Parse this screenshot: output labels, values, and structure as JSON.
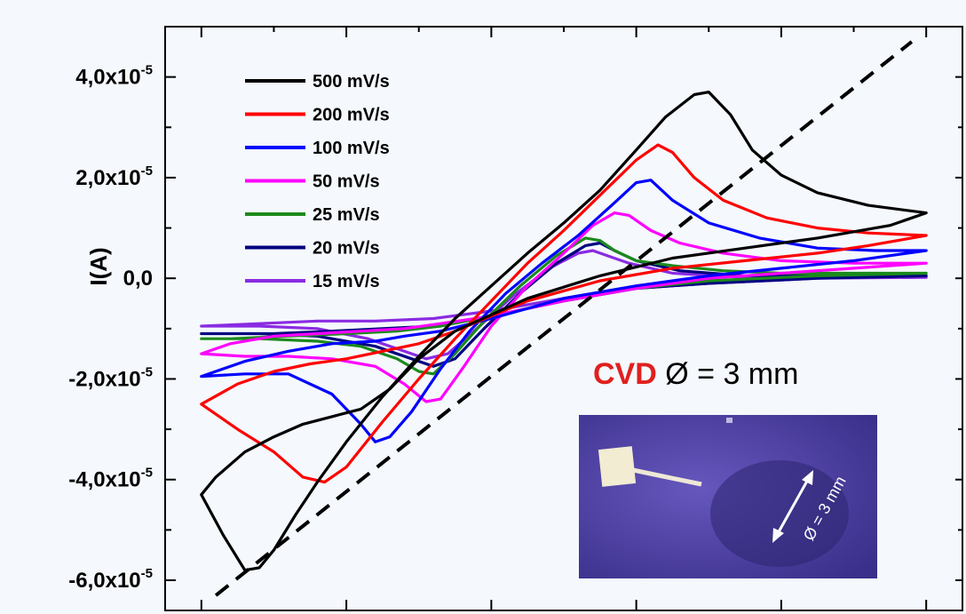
{
  "chart_data": {
    "type": "line",
    "ylabel": "I(A)",
    "xlabel": "",
    "xlim": [
      -0.35,
      0.75
    ],
    "ylim": [
      -6.6e-05,
      5e-05
    ],
    "x_ticks": [
      -0.3,
      -0.1,
      0.1,
      0.3,
      0.5,
      0.7
    ],
    "y_tick_values": [
      4e-05,
      2e-05,
      0.0,
      -2e-05,
      -4e-05,
      -6e-05
    ],
    "y_tick_labels": [
      {
        "mant": "4,0x10",
        "exp": "-5"
      },
      {
        "mant": "2,0x10",
        "exp": "-5"
      },
      {
        "mant": "0,0",
        "exp": ""
      },
      {
        "mant": "-2,0x10",
        "exp": "-5"
      },
      {
        "mant": "-4,0x10",
        "exp": "-5"
      },
      {
        "mant": "-6,0x10",
        "exp": "-5"
      }
    ],
    "grid": false,
    "legend_position": "top-left",
    "series": [
      {
        "name": "500 mV/s",
        "color": "#000000",
        "x": [
          -0.3,
          -0.27,
          -0.24,
          -0.22,
          -0.2,
          -0.17,
          -0.14,
          -0.1,
          -0.05,
          0.0,
          0.05,
          0.1,
          0.15,
          0.2,
          0.25,
          0.3,
          0.34,
          0.38,
          0.4,
          0.43,
          0.46,
          0.5,
          0.55,
          0.62,
          0.7,
          0.65,
          0.55,
          0.45,
          0.35,
          0.25,
          0.15,
          0.05,
          0.0,
          -0.04,
          -0.08,
          -0.12,
          -0.16,
          -0.2,
          -0.24,
          -0.28,
          -0.3
        ],
        "y": [
          -4.3e-05,
          -5.1e-05,
          -5.8e-05,
          -5.75e-05,
          -5.4e-05,
          -4.7e-05,
          -4.05e-05,
          -3.25e-05,
          -2.35e-05,
          -1.55e-05,
          -8e-06,
          -1.5e-06,
          5e-06,
          1.1e-05,
          1.75e-05,
          2.55e-05,
          3.2e-05,
          3.65e-05,
          3.7e-05,
          3.25e-05,
          2.55e-05,
          2.05e-05,
          1.7e-05,
          1.45e-05,
          1.3e-05,
          1.05e-05,
          8e-06,
          6e-06,
          4e-06,
          5e-07,
          -4e-06,
          -1.05e-05,
          -1.6e-05,
          -2.2e-05,
          -2.6e-05,
          -2.75e-05,
          -2.9e-05,
          -3.15e-05,
          -3.45e-05,
          -3.95e-05,
          -4.3e-05
        ]
      },
      {
        "name": "200 mV/s",
        "color": "#ff0000",
        "x": [
          -0.3,
          -0.25,
          -0.2,
          -0.16,
          -0.13,
          -0.1,
          -0.05,
          0.0,
          0.05,
          0.1,
          0.15,
          0.2,
          0.25,
          0.3,
          0.33,
          0.35,
          0.38,
          0.42,
          0.48,
          0.55,
          0.62,
          0.7,
          0.62,
          0.55,
          0.45,
          0.35,
          0.25,
          0.15,
          0.05,
          0.0,
          -0.05,
          -0.1,
          -0.15,
          -0.2,
          -0.25,
          -0.3
        ],
        "y": [
          -2.5e-05,
          -3e-05,
          -3.45e-05,
          -3.95e-05,
          -4.05e-05,
          -3.75e-05,
          -2.85e-05,
          -2e-05,
          -1.2e-05,
          -4.5e-06,
          3e-06,
          9.5e-06,
          1.65e-05,
          2.35e-05,
          2.65e-05,
          2.5e-05,
          2e-05,
          1.55e-05,
          1.2e-05,
          1e-05,
          9e-06,
          8.5e-06,
          6.5e-06,
          5e-06,
          3.5e-06,
          2e-06,
          -5e-07,
          -4.5e-06,
          -1.05e-05,
          -1.3e-05,
          -1.45e-05,
          -1.6e-05,
          -1.7e-05,
          -1.85e-05,
          -2.1e-05,
          -2.5e-05
        ]
      },
      {
        "name": "100 mV/s",
        "color": "#0000ff",
        "x": [
          -0.3,
          -0.24,
          -0.18,
          -0.12,
          -0.08,
          -0.06,
          -0.04,
          -0.01,
          0.03,
          0.07,
          0.12,
          0.17,
          0.22,
          0.27,
          0.3,
          0.32,
          0.35,
          0.4,
          0.47,
          0.55,
          0.63,
          0.7,
          0.6,
          0.5,
          0.4,
          0.3,
          0.2,
          0.1,
          0.03,
          -0.02,
          -0.06,
          -0.12,
          -0.18,
          -0.24,
          -0.3
        ],
        "y": [
          -1.95e-05,
          -1.9e-05,
          -1.9e-05,
          -2.3e-05,
          -2.9e-05,
          -3.25e-05,
          -3.15e-05,
          -2.65e-05,
          -1.8e-05,
          -1.05e-05,
          -3e-06,
          3e-06,
          8.5e-06,
          1.5e-05,
          1.9e-05,
          1.95e-05,
          1.55e-05,
          1.1e-05,
          8e-06,
          6e-06,
          5.5e-06,
          5.5e-06,
          3.5e-06,
          2e-06,
          5e-07,
          -1.5e-06,
          -4e-06,
          -8e-06,
          -1.05e-05,
          -1.15e-05,
          -1.25e-05,
          -1.3e-05,
          -1.45e-05,
          -1.65e-05,
          -1.95e-05
        ]
      },
      {
        "name": "50 mV/s",
        "color": "#ff00ff",
        "x": [
          -0.3,
          -0.24,
          -0.18,
          -0.12,
          -0.06,
          -0.02,
          0.01,
          0.03,
          0.06,
          0.1,
          0.15,
          0.2,
          0.24,
          0.27,
          0.29,
          0.32,
          0.36,
          0.42,
          0.5,
          0.6,
          0.7,
          0.6,
          0.5,
          0.4,
          0.3,
          0.2,
          0.1,
          0.03,
          -0.02,
          -0.08,
          -0.14,
          -0.2,
          -0.26,
          -0.3
        ],
        "y": [
          -1.5e-05,
          -1.55e-05,
          -1.55e-05,
          -1.6e-05,
          -1.75e-05,
          -2.1e-05,
          -2.45e-05,
          -2.4e-05,
          -1.8e-05,
          -9.5e-06,
          -1.5e-06,
          5e-06,
          1.05e-05,
          1.3e-05,
          1.25e-05,
          9.5e-06,
          7e-06,
          5e-06,
          3.5e-06,
          3e-06,
          3e-06,
          2e-06,
          1e-06,
          0.0,
          -2e-06,
          -4.5e-06,
          -7.5e-06,
          -9e-06,
          -1e-05,
          -1.05e-05,
          -1.1e-05,
          -1.15e-05,
          -1.3e-05,
          -1.5e-05
        ]
      },
      {
        "name": "25 mV/s",
        "color": "#1c8a1c",
        "x": [
          -0.3,
          -0.22,
          -0.14,
          -0.08,
          -0.03,
          0.0,
          0.02,
          0.05,
          0.09,
          0.14,
          0.19,
          0.23,
          0.25,
          0.27,
          0.3,
          0.35,
          0.42,
          0.5,
          0.6,
          0.7,
          0.55,
          0.4,
          0.3,
          0.2,
          0.1,
          0.03,
          -0.03,
          -0.1,
          -0.18,
          -0.26,
          -0.3
        ],
        "y": [
          -1.2e-05,
          -1.2e-05,
          -1.25e-05,
          -1.35e-05,
          -1.6e-05,
          -1.85e-05,
          -1.9e-05,
          -1.5e-05,
          -8.5e-06,
          -1.5e-06,
          4.5e-06,
          8e-06,
          7.5e-06,
          5.5e-06,
          3.5e-06,
          2.5e-06,
          1.5e-06,
          1e-06,
          1e-06,
          1e-06,
          5e-07,
          -5e-07,
          -2e-06,
          -4.5e-06,
          -7.5e-06,
          -9.5e-06,
          -1.05e-05,
          -1.1e-05,
          -1.15e-05,
          -1.2e-05,
          -1.2e-05
        ]
      },
      {
        "name": "20 mV/s",
        "color": "#000080",
        "x": [
          -0.3,
          -0.22,
          -0.14,
          -0.06,
          -0.01,
          0.02,
          0.05,
          0.09,
          0.14,
          0.19,
          0.23,
          0.25,
          0.27,
          0.3,
          0.36,
          0.45,
          0.55,
          0.7,
          0.55,
          0.4,
          0.3,
          0.2,
          0.1,
          0.02,
          -0.05,
          -0.12,
          -0.2,
          -0.3
        ],
        "y": [
          -1.1e-05,
          -1.1e-05,
          -1.15e-05,
          -1.35e-05,
          -1.6e-05,
          -1.75e-05,
          -1.6e-05,
          -1e-05,
          -3e-06,
          3e-06,
          6.5e-06,
          7e-06,
          5.5e-06,
          3.5e-06,
          1.5e-06,
          5e-07,
          5e-07,
          5e-07,
          0.0,
          -1e-06,
          -2e-06,
          -4.5e-06,
          -7.5e-06,
          -9.5e-06,
          -1e-05,
          -1.05e-05,
          -1.1e-05,
          -1.1e-05
        ]
      },
      {
        "name": "15 mV/s",
        "color": "#8a2be2",
        "x": [
          -0.3,
          -0.22,
          -0.14,
          -0.07,
          -0.02,
          0.01,
          0.04,
          0.08,
          0.13,
          0.18,
          0.22,
          0.24,
          0.26,
          0.29,
          0.35,
          0.45,
          0.55,
          0.7,
          0.55,
          0.4,
          0.3,
          0.2,
          0.1,
          0.02,
          -0.06,
          -0.14,
          -0.22,
          -0.3
        ],
        "y": [
          -9.5e-06,
          -9.5e-06,
          -1e-05,
          -1.2e-05,
          -1.45e-05,
          -1.6e-05,
          -1.5e-05,
          -1e-05,
          -3.5e-06,
          2e-06,
          5e-06,
          5.5e-06,
          4.5e-06,
          3e-06,
          1e-06,
          2e-07,
          2e-07,
          2e-07,
          0.0,
          -1e-06,
          -2e-06,
          -4e-06,
          -6.5e-06,
          -8e-06,
          -8.5e-06,
          -8.5e-06,
          -9e-06,
          -9.5e-06
        ]
      }
    ],
    "dashed_line": {
      "x": [
        -0.28,
        0.68
      ],
      "y": [
        -6.3e-05,
        4.7e-05
      ]
    },
    "annotation": {
      "red_text": "CVD",
      "text": " Ø = 3 mm"
    }
  },
  "inset": {
    "label": "Ø = 3 mm",
    "colors": {
      "background": "#5b4fb0",
      "pad": "#f1ecd2",
      "dark_area": "#2c2470",
      "arrow": "#ffffff"
    }
  }
}
